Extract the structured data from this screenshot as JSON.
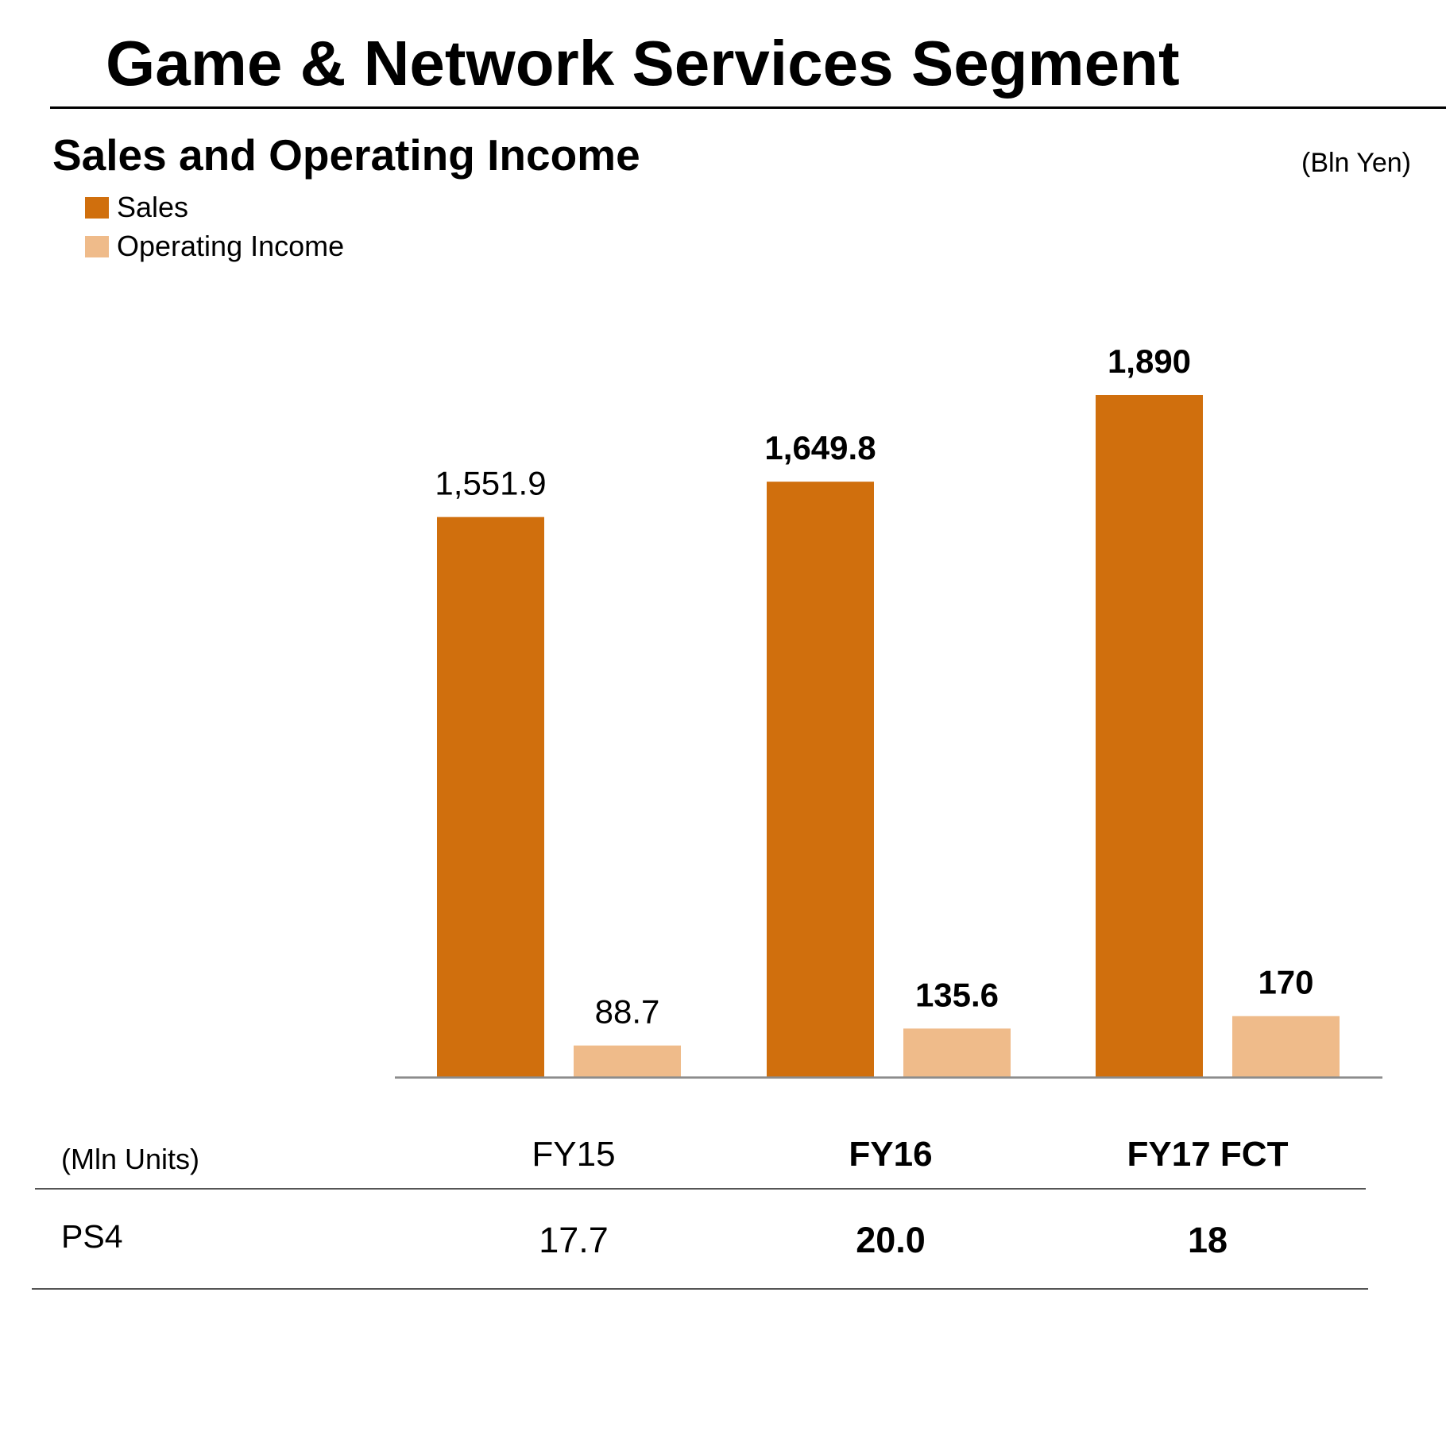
{
  "header": {
    "title": "Game & Network Services Segment"
  },
  "chart_data": {
    "type": "bar",
    "title": "Sales and Operating Income",
    "unit": "(Bln Yen)",
    "categories": [
      "FY15",
      "FY16",
      "FY17 FCT"
    ],
    "series": [
      {
        "name": "Sales",
        "values": [
          1551.9,
          1649.8,
          1890
        ],
        "labels": [
          "1,551.9",
          "1,649.8",
          "1,890"
        ],
        "color": "#d06f0d"
      },
      {
        "name": "Operating Income",
        "values": [
          88.7,
          135.6,
          170
        ],
        "labels": [
          "88.7",
          "135.6",
          "170"
        ],
        "color": "#efbb8a"
      }
    ],
    "ylim": [
      -280,
      1890
    ],
    "grid": false,
    "legend": "top-left",
    "emphasized_categories": [
      "FY16",
      "FY17 FCT"
    ]
  },
  "table": {
    "unit": "(Mln Units)",
    "columns": [
      "FY15",
      "FY16",
      "FY17 FCT"
    ],
    "rows": [
      {
        "label": "PS4",
        "values": [
          "17.7",
          "20.0",
          "18"
        ]
      }
    ]
  },
  "colors": {
    "sales": "#d06f0d",
    "operating_income": "#efbb8a",
    "axis": "#8c8c8c",
    "rule": "#555555"
  }
}
